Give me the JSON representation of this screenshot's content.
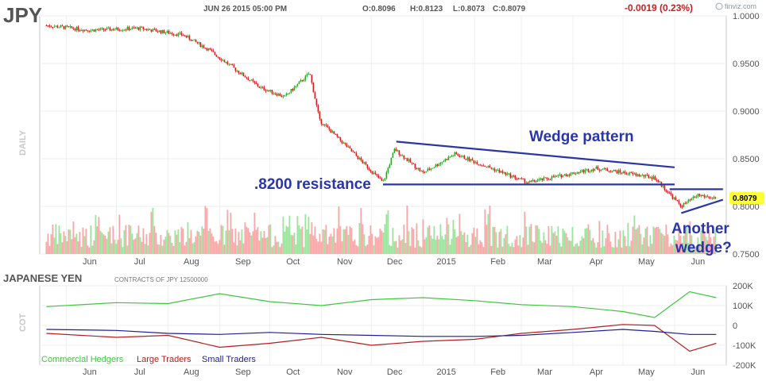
{
  "header": {
    "ticker": "JPY",
    "timestamp": "JUN 26 2015 05:00 PM",
    "open": "O:0.8096",
    "high": "H:0.8123",
    "low": "L:0.8073",
    "close": "C:0.8079",
    "change": "-0.0019 (0.23%)",
    "brand": "finviz.com"
  },
  "colors": {
    "up": "#2e9e2e",
    "down": "#c81e1e",
    "annotation": "#2a36a8",
    "price_tag_bg": "#ffff33",
    "commercial": "#3cc83c",
    "large": "#b41e1e",
    "small": "#1e1e96",
    "vol_up": "#9ee09e",
    "vol_down": "#f4a8a8"
  },
  "price_panel": {
    "side_label": "DAILY",
    "y_ticks": [
      "1.0000",
      "0.9500",
      "0.9000",
      "0.8500",
      "0.8000",
      "0.7500"
    ],
    "last_price_tag": "0.8079",
    "x_labels": [
      "Jun",
      "Jul",
      "Aug",
      "Sep",
      "Oct",
      "Nov",
      "Dec",
      "2015",
      "Feb",
      "Mar",
      "Apr",
      "May",
      "Jun"
    ]
  },
  "annotations": {
    "wedge": "Wedge pattern",
    "resistance": ".8200 resistance",
    "another_line1": "Another",
    "another_line2": "wedge?"
  },
  "cot_panel": {
    "title": "JAPANESE YEN",
    "subtitle": "CONTRACTS OF JPY 12500000",
    "side_label": "COT",
    "y_ticks": [
      "200K",
      "100K",
      "0",
      "-100K",
      "-200K"
    ],
    "x_labels": [
      "Jun",
      "Jul",
      "Aug",
      "Sep",
      "Oct",
      "Nov",
      "Dec",
      "2015",
      "Feb",
      "Mar",
      "Apr",
      "May",
      "Jun"
    ],
    "legend": [
      "Commercial Hedgers",
      "Large Traders",
      "Small Traders"
    ]
  },
  "chart_data": [
    {
      "type": "candlestick",
      "ylim": [
        0.75,
        1.0
      ],
      "key_closes": [
        {
          "date": "2014-05-20",
          "value": 0.99
        },
        {
          "date": "2014-06-15",
          "value": 0.985
        },
        {
          "date": "2014-07-15",
          "value": 0.987
        },
        {
          "date": "2014-08-10",
          "value": 0.98
        },
        {
          "date": "2014-08-25",
          "value": 0.965
        },
        {
          "date": "2014-09-25",
          "value": 0.925
        },
        {
          "date": "2014-10-10",
          "value": 0.915
        },
        {
          "date": "2014-10-25",
          "value": 0.94
        },
        {
          "date": "2014-10-31",
          "value": 0.89
        },
        {
          "date": "2014-11-15",
          "value": 0.865
        },
        {
          "date": "2014-12-08",
          "value": 0.825
        },
        {
          "date": "2014-12-15",
          "value": 0.86
        },
        {
          "date": "2015-01-01",
          "value": 0.835
        },
        {
          "date": "2015-01-20",
          "value": 0.855
        },
        {
          "date": "2015-03-05",
          "value": 0.825
        },
        {
          "date": "2015-04-15",
          "value": 0.84
        },
        {
          "date": "2015-05-20",
          "value": 0.83
        },
        {
          "date": "2015-06-05",
          "value": 0.8
        },
        {
          "date": "2015-06-15",
          "value": 0.812
        },
        {
          "date": "2015-06-26",
          "value": 0.8079
        }
      ],
      "trendlines": [
        {
          "label": "Wedge pattern",
          "from": [
            "2014-12-16",
            0.868
          ],
          "to": [
            "2015-06-01",
            0.841
          ]
        },
        {
          "label": ".8200 resistance",
          "from": [
            "2014-12-08",
            0.823
          ],
          "to": [
            "2015-06-01",
            0.823
          ]
        },
        {
          "label": "Another wedge? (top)",
          "from": [
            "2015-05-29",
            0.818
          ],
          "to": [
            "2015-06-30",
            0.818
          ]
        },
        {
          "label": "Another wedge? (bottom)",
          "from": [
            "2015-06-05",
            0.793
          ],
          "to": [
            "2015-06-30",
            0.807
          ]
        }
      ],
      "last": 0.8079
    },
    {
      "type": "line",
      "title": "JAPANESE YEN",
      "ylim": [
        -200000,
        200000
      ],
      "series": [
        {
          "name": "Commercial Hedgers",
          "points": [
            {
              "date": "2014-05-20",
              "value": 95000
            },
            {
              "date": "2014-07-01",
              "value": 115000
            },
            {
              "date": "2014-08-01",
              "value": 110000
            },
            {
              "date": "2014-09-01",
              "value": 160000
            },
            {
              "date": "2014-10-01",
              "value": 120000
            },
            {
              "date": "2014-11-01",
              "value": 100000
            },
            {
              "date": "2014-12-01",
              "value": 130000
            },
            {
              "date": "2015-01-01",
              "value": 140000
            },
            {
              "date": "2015-02-01",
              "value": 125000
            },
            {
              "date": "2015-03-01",
              "value": 105000
            },
            {
              "date": "2015-04-01",
              "value": 95000
            },
            {
              "date": "2015-05-01",
              "value": 70000
            },
            {
              "date": "2015-05-20",
              "value": 40000
            },
            {
              "date": "2015-06-10",
              "value": 170000
            },
            {
              "date": "2015-06-26",
              "value": 140000
            }
          ]
        },
        {
          "name": "Large Traders",
          "points": [
            {
              "date": "2014-05-20",
              "value": -40000
            },
            {
              "date": "2014-07-01",
              "value": -60000
            },
            {
              "date": "2014-08-01",
              "value": -50000
            },
            {
              "date": "2014-09-01",
              "value": -110000
            },
            {
              "date": "2014-10-01",
              "value": -90000
            },
            {
              "date": "2014-11-01",
              "value": -60000
            },
            {
              "date": "2014-12-01",
              "value": -100000
            },
            {
              "date": "2015-01-01",
              "value": -80000
            },
            {
              "date": "2015-02-01",
              "value": -70000
            },
            {
              "date": "2015-03-01",
              "value": -40000
            },
            {
              "date": "2015-04-01",
              "value": -20000
            },
            {
              "date": "2015-05-01",
              "value": 5000
            },
            {
              "date": "2015-05-20",
              "value": 0
            },
            {
              "date": "2015-06-10",
              "value": -130000
            },
            {
              "date": "2015-06-26",
              "value": -90000
            }
          ]
        },
        {
          "name": "Small Traders",
          "points": [
            {
              "date": "2014-05-20",
              "value": -20000
            },
            {
              "date": "2014-07-01",
              "value": -25000
            },
            {
              "date": "2014-08-01",
              "value": -40000
            },
            {
              "date": "2014-09-01",
              "value": -45000
            },
            {
              "date": "2014-10-01",
              "value": -35000
            },
            {
              "date": "2014-11-01",
              "value": -45000
            },
            {
              "date": "2014-12-01",
              "value": -50000
            },
            {
              "date": "2015-01-01",
              "value": -55000
            },
            {
              "date": "2015-02-01",
              "value": -55000
            },
            {
              "date": "2015-03-01",
              "value": -50000
            },
            {
              "date": "2015-04-01",
              "value": -35000
            },
            {
              "date": "2015-05-01",
              "value": -20000
            },
            {
              "date": "2015-05-20",
              "value": -30000
            },
            {
              "date": "2015-06-10",
              "value": -45000
            },
            {
              "date": "2015-06-26",
              "value": -45000
            }
          ]
        }
      ]
    }
  ]
}
